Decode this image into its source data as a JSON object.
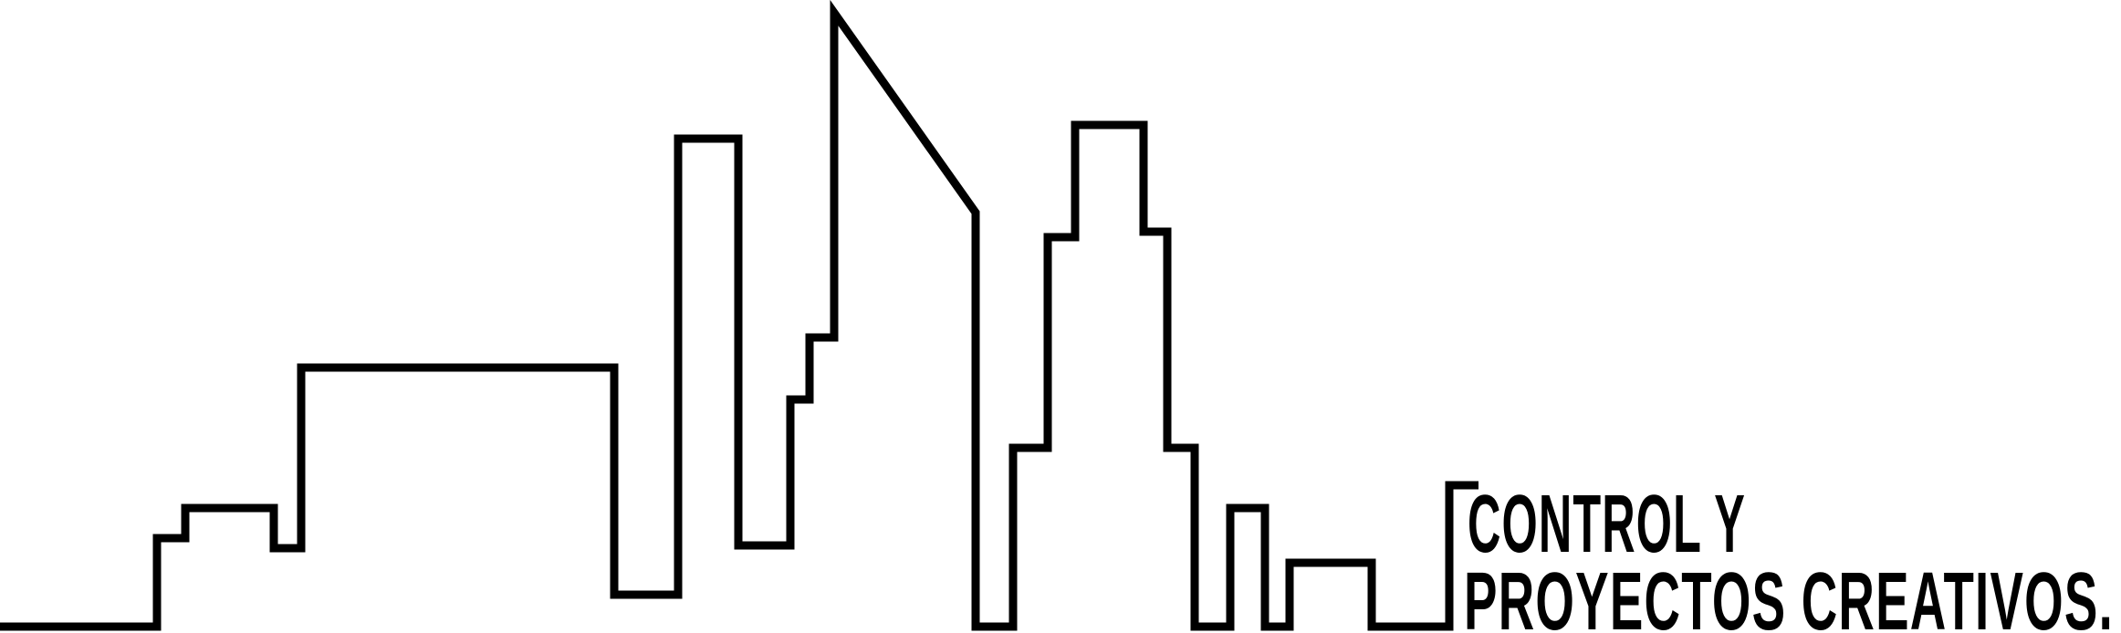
{
  "brand": {
    "line1": "CONTROL Y",
    "line2": "PROYECTOS CREATIVOS.",
    "ink_color": "#000000",
    "background_color": "#ffffff"
  }
}
